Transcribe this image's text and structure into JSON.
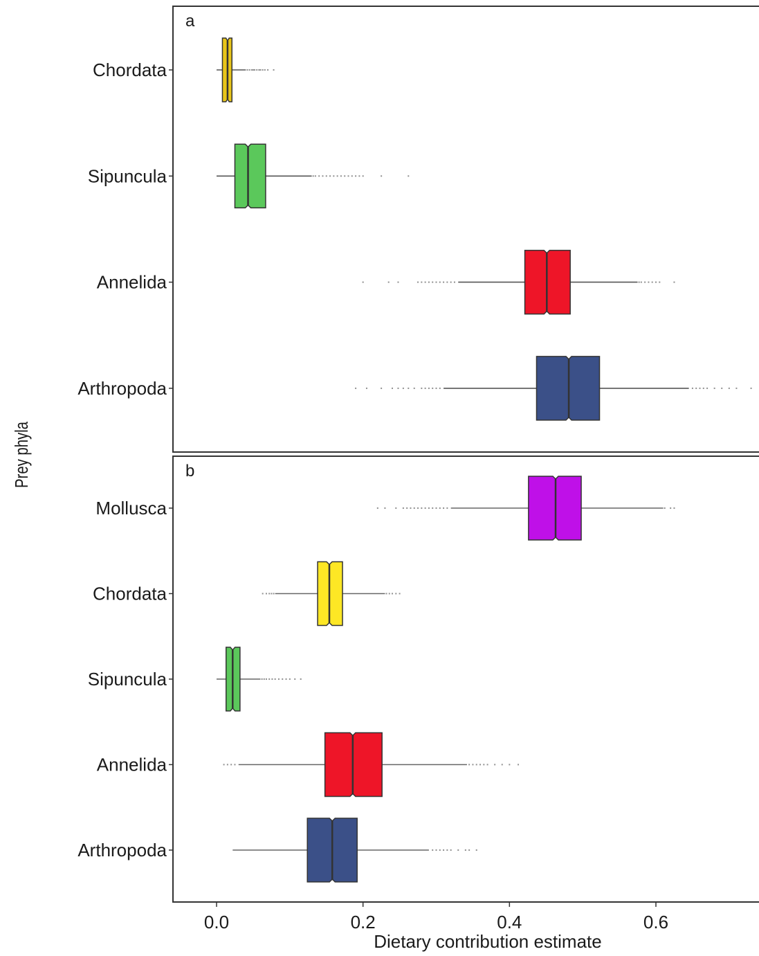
{
  "chart_data": {
    "type": "boxplot",
    "xlabel": "Dietary contribution estimate",
    "ylabel": "Prey phyla",
    "xlim": [
      -0.05,
      0.735
    ],
    "x_ticks": [
      {
        "value": 0.0,
        "label": "0.0"
      },
      {
        "value": 0.2,
        "label": "0.2"
      },
      {
        "value": 0.4,
        "label": "0.4"
      },
      {
        "value": 0.6,
        "label": "0.6"
      }
    ],
    "grid": false,
    "notched": true,
    "panels": [
      {
        "tag": "a",
        "categories": [
          {
            "name": "Chordata",
            "color": "#E8C51A",
            "min": 0.0,
            "q1": 0.008,
            "median": 0.015,
            "q3": 0.021,
            "max": 0.04,
            "outliers": [
              0.042,
              0.045,
              0.048,
              0.05,
              0.052,
              0.055,
              0.058,
              0.06,
              0.063,
              0.066,
              0.07,
              0.078
            ]
          },
          {
            "name": "Sipuncula",
            "color": "#5BC85B",
            "min": 0.0,
            "q1": 0.025,
            "median": 0.043,
            "q3": 0.067,
            "max": 0.13,
            "outliers": [
              0.132,
              0.135,
              0.14,
              0.145,
              0.15,
              0.155,
              0.16,
              0.165,
              0.17,
              0.175,
              0.18,
              0.185,
              0.19,
              0.195,
              0.2,
              0.225,
              0.262
            ]
          },
          {
            "name": "Annelida",
            "color": "#EE1528",
            "min": 0.33,
            "q1": 0.421,
            "median": 0.451,
            "q3": 0.483,
            "max": 0.575,
            "outliers": [
              0.2,
              0.235,
              0.248,
              0.275,
              0.28,
              0.285,
              0.29,
              0.295,
              0.3,
              0.305,
              0.31,
              0.315,
              0.32,
              0.325,
              0.577,
              0.58,
              0.585,
              0.59,
              0.595,
              0.6,
              0.605,
              0.625
            ]
          },
          {
            "name": "Arthropoda",
            "color": "#3B5088",
            "min": 0.31,
            "q1": 0.437,
            "median": 0.481,
            "q3": 0.523,
            "max": 0.645,
            "outliers": [
              0.19,
              0.205,
              0.225,
              0.24,
              0.248,
              0.255,
              0.262,
              0.27,
              0.28,
              0.285,
              0.29,
              0.295,
              0.3,
              0.305,
              0.65,
              0.655,
              0.66,
              0.665,
              0.67,
              0.68,
              0.69,
              0.7,
              0.71,
              0.73
            ]
          }
        ]
      },
      {
        "tag": "b",
        "categories": [
          {
            "name": "Mollusca",
            "color": "#BF10E8",
            "min": 0.32,
            "q1": 0.426,
            "median": 0.463,
            "q3": 0.498,
            "max": 0.61,
            "outliers": [
              0.22,
              0.23,
              0.245,
              0.255,
              0.26,
              0.265,
              0.27,
              0.275,
              0.28,
              0.285,
              0.29,
              0.295,
              0.3,
              0.305,
              0.31,
              0.315,
              0.612,
              0.62,
              0.625
            ]
          },
          {
            "name": "Chordata",
            "color": "#FDE725",
            "min": 0.08,
            "q1": 0.138,
            "median": 0.154,
            "q3": 0.172,
            "max": 0.23,
            "outliers": [
              0.063,
              0.068,
              0.072,
              0.075,
              0.078,
              0.232,
              0.236,
              0.24,
              0.245,
              0.25
            ]
          },
          {
            "name": "Sipuncula",
            "color": "#5BC85B",
            "min": 0.0,
            "q1": 0.013,
            "median": 0.022,
            "q3": 0.032,
            "max": 0.06,
            "outliers": [
              0.062,
              0.065,
              0.068,
              0.072,
              0.076,
              0.08,
              0.085,
              0.09,
              0.095,
              0.1,
              0.107,
              0.115
            ]
          },
          {
            "name": "Annelida",
            "color": "#EE1528",
            "min": 0.03,
            "q1": 0.148,
            "median": 0.186,
            "q3": 0.226,
            "max": 0.342,
            "outliers": [
              0.01,
              0.015,
              0.02,
              0.025,
              0.345,
              0.35,
              0.355,
              0.36,
              0.365,
              0.37,
              0.38,
              0.39,
              0.4,
              0.412
            ]
          },
          {
            "name": "Arthropoda",
            "color": "#3B5088",
            "min": 0.022,
            "q1": 0.124,
            "median": 0.158,
            "q3": 0.192,
            "max": 0.29,
            "outliers": [
              0.295,
              0.3,
              0.305,
              0.31,
              0.315,
              0.32,
              0.33,
              0.34,
              0.345,
              0.355
            ]
          }
        ]
      }
    ]
  }
}
